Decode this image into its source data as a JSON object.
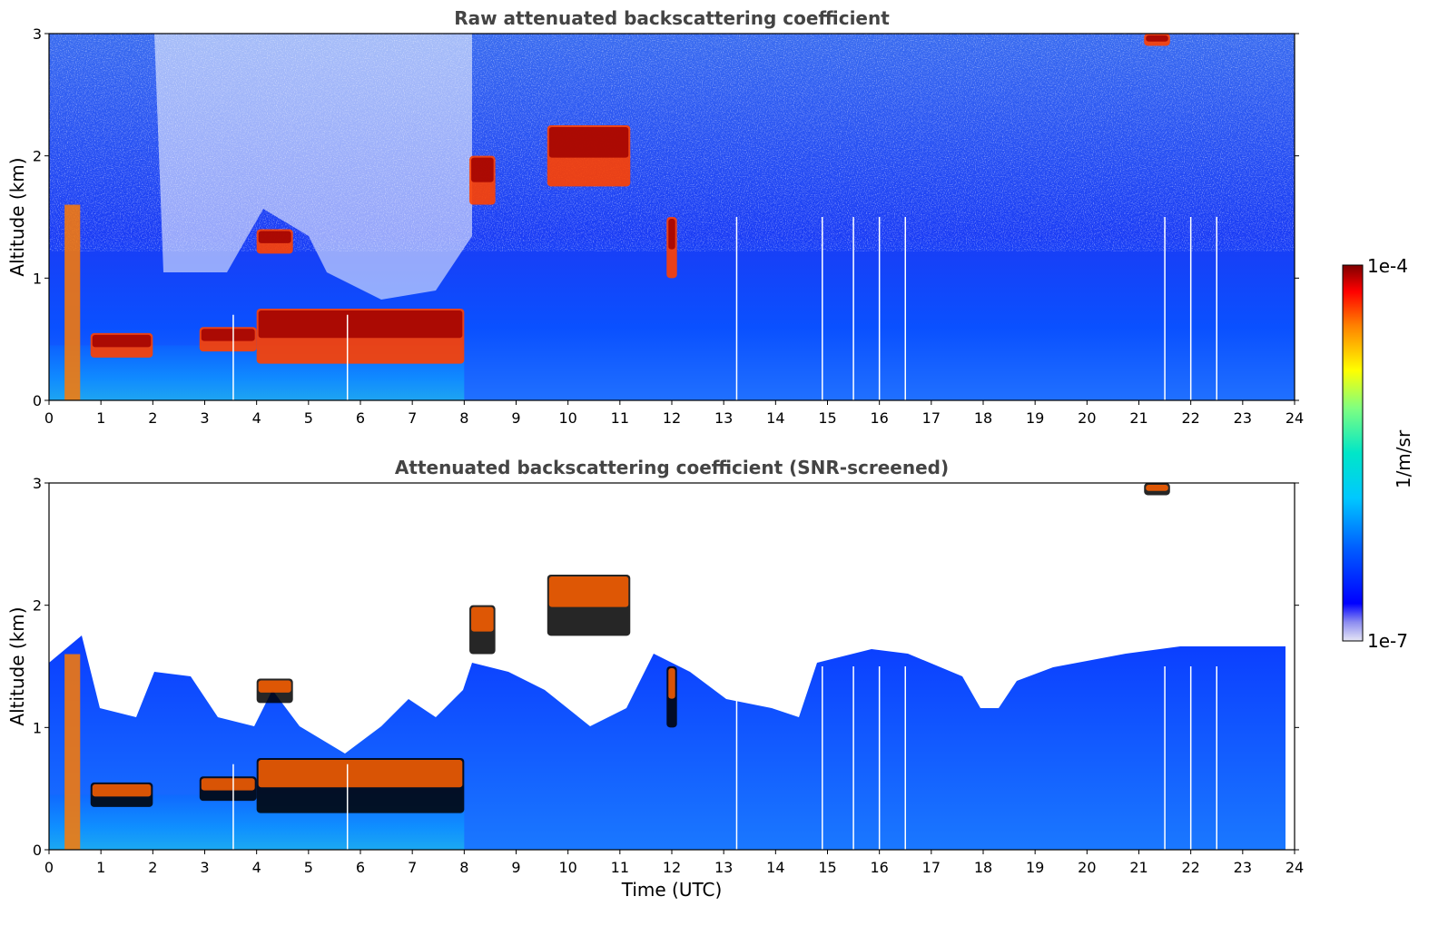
{
  "chart_data": [
    {
      "type": "heatmap",
      "title": "Raw attenuated backscattering coefficient",
      "xlabel": "",
      "ylabel": "Altitude (km)",
      "xlim": [
        0,
        24
      ],
      "ylim": [
        0,
        3
      ],
      "x_ticks": [
        "0",
        "1",
        "2",
        "3",
        "4",
        "5",
        "6",
        "7",
        "8",
        "9",
        "10",
        "11",
        "12",
        "13",
        "14",
        "15",
        "16",
        "17",
        "18",
        "19",
        "20",
        "21",
        "22",
        "23",
        "24"
      ],
      "y_ticks": [
        "0",
        "1",
        "2",
        "3"
      ],
      "snr_screened": false,
      "features": [
        {
          "kind": "boundary_layer_cloud",
          "time": [
            0.8,
            2.0
          ],
          "altitude_km": [
            0.35,
            0.55
          ]
        },
        {
          "kind": "boundary_layer_cloud",
          "time": [
            2.9,
            4.0
          ],
          "altitude_km": [
            0.4,
            0.6
          ]
        },
        {
          "kind": "boundary_layer_cloud",
          "time": [
            4.0,
            8.0
          ],
          "altitude_km": [
            0.3,
            0.75
          ]
        },
        {
          "kind": "elevated_cloud",
          "time": [
            4.0,
            4.7
          ],
          "altitude_km": [
            1.2,
            1.4
          ]
        },
        {
          "kind": "elevated_cloud",
          "time": [
            8.1,
            8.6
          ],
          "altitude_km": [
            1.6,
            2.0
          ]
        },
        {
          "kind": "elevated_cloud",
          "time": [
            9.6,
            11.2
          ],
          "altitude_km": [
            1.75,
            2.25
          ]
        },
        {
          "kind": "elevated_cloud",
          "time": [
            11.9,
            12.1
          ],
          "altitude_km": [
            1.0,
            1.5
          ]
        },
        {
          "kind": "high_echo",
          "time": [
            21.1,
            21.6
          ],
          "altitude_km": [
            2.9,
            3.0
          ]
        }
      ],
      "data_gaps_time": [
        3.55,
        5.75,
        13.25,
        14.9,
        15.5,
        16.0,
        16.5,
        21.5,
        22.0,
        22.5
      ]
    },
    {
      "type": "heatmap",
      "title": "Attenuated backscattering coefficient (SNR-screened)",
      "xlabel": "Time (UTC)",
      "ylabel": "Altitude (km)",
      "xlim": [
        0,
        24
      ],
      "ylim": [
        0,
        3
      ],
      "x_ticks": [
        "0",
        "1",
        "2",
        "3",
        "4",
        "5",
        "6",
        "7",
        "8",
        "9",
        "10",
        "11",
        "12",
        "13",
        "14",
        "15",
        "16",
        "17",
        "18",
        "19",
        "20",
        "21",
        "22",
        "23",
        "24"
      ],
      "y_ticks": [
        "0",
        "1",
        "2",
        "3"
      ],
      "snr_screened": true,
      "features": [
        {
          "kind": "boundary_layer_cloud",
          "time": [
            0.8,
            2.0
          ],
          "altitude_km": [
            0.35,
            0.55
          ]
        },
        {
          "kind": "boundary_layer_cloud",
          "time": [
            2.9,
            4.0
          ],
          "altitude_km": [
            0.4,
            0.6
          ]
        },
        {
          "kind": "boundary_layer_cloud",
          "time": [
            4.0,
            8.0
          ],
          "altitude_km": [
            0.3,
            0.75
          ]
        },
        {
          "kind": "elevated_cloud",
          "time": [
            4.0,
            4.7
          ],
          "altitude_km": [
            1.2,
            1.4
          ]
        },
        {
          "kind": "elevated_cloud",
          "time": [
            8.1,
            8.6
          ],
          "altitude_km": [
            1.6,
            2.0
          ]
        },
        {
          "kind": "elevated_cloud",
          "time": [
            9.6,
            11.2
          ],
          "altitude_km": [
            1.75,
            2.25
          ]
        },
        {
          "kind": "elevated_cloud",
          "time": [
            11.9,
            12.1
          ],
          "altitude_km": [
            1.0,
            1.5
          ]
        },
        {
          "kind": "high_echo",
          "time": [
            21.1,
            21.6
          ],
          "altitude_km": [
            2.9,
            3.0
          ]
        }
      ],
      "data_gaps_time": [
        3.55,
        5.75,
        13.25,
        14.9,
        15.5,
        16.0,
        16.5,
        21.5,
        22.0,
        22.5
      ]
    }
  ],
  "colorbar": {
    "label": "1/m/sr",
    "max_label": "1e-4",
    "min_label": "1e-7",
    "scale": "log",
    "colormap": "jet"
  }
}
